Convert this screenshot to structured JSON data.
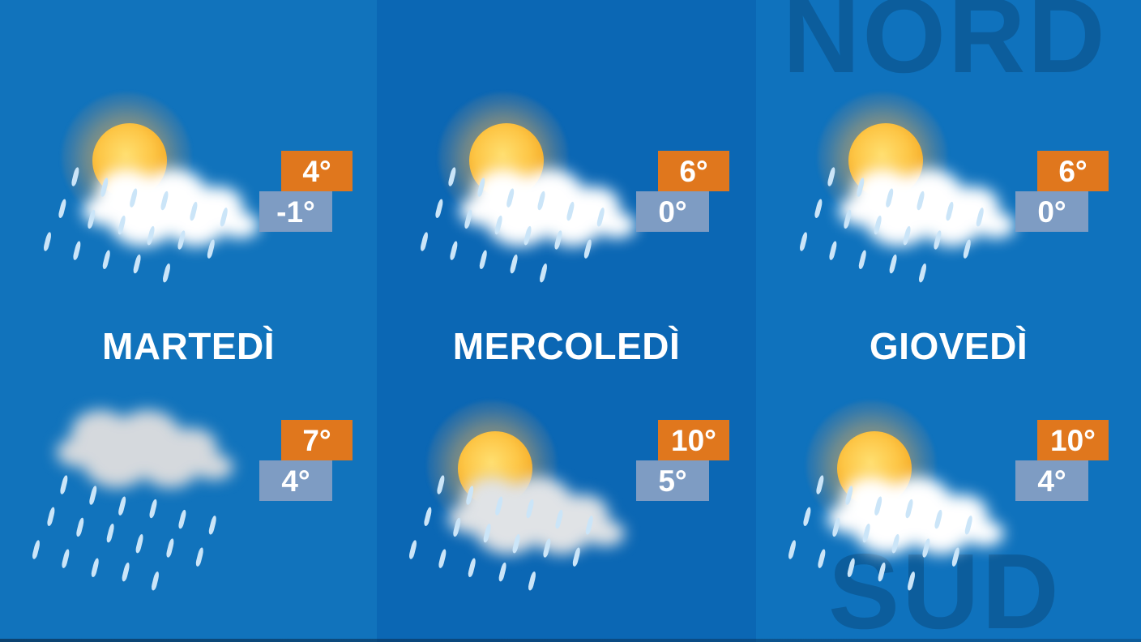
{
  "watermarks": {
    "north": "NORD",
    "south": "SUD"
  },
  "palette": {
    "column_backgrounds": [
      "#1173bc",
      "#0b67b4",
      "#0f72bd"
    ],
    "high_badge": "#e0771d",
    "low_badge": "#7e9cc3",
    "watermark_text": "#0c5d9c",
    "label_text": "#ffffff",
    "bottom_strip": "#0a2948"
  },
  "icons_legend": {
    "sun-cloud": "sun partially covered by white cloud",
    "sun-cloud-hazy": "sun partially covered by hazy grey cloud",
    "rain": "grey cloud with rain streaks"
  },
  "days": [
    {
      "label": "MARTEDÌ",
      "slots": [
        {
          "icon": "sun-cloud",
          "high": "4°",
          "low": "-1°"
        },
        {
          "icon": "rain",
          "high": "7°",
          "low": "4°"
        }
      ]
    },
    {
      "label": "MERCOLEDÌ",
      "slots": [
        {
          "icon": "sun-cloud",
          "high": "6°",
          "low": "0°"
        },
        {
          "icon": "sun-cloud-hazy",
          "high": "10°",
          "low": "5°"
        }
      ]
    },
    {
      "label": "GIOVEDÌ",
      "slots": [
        {
          "icon": "sun-cloud",
          "high": "6°",
          "low": "0°"
        },
        {
          "icon": "sun-cloud",
          "high": "10°",
          "low": "4°"
        }
      ]
    }
  ]
}
